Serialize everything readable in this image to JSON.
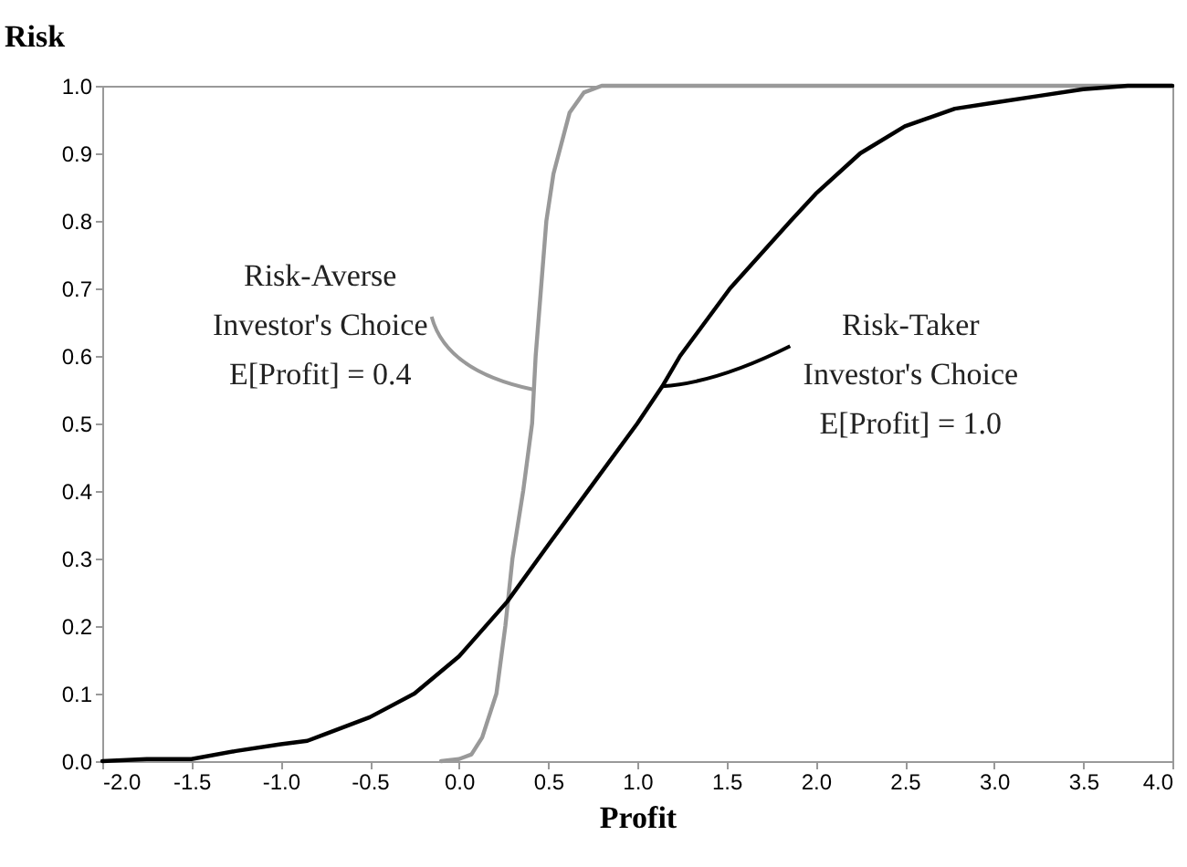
{
  "chart_data": {
    "type": "line",
    "xlabel": "Profit",
    "ylabel": "Risk",
    "xlim": [
      -2.0,
      4.0
    ],
    "ylim": [
      0.0,
      1.0
    ],
    "xticks": [
      {
        "value": -2.0,
        "label": "-2.0"
      },
      {
        "value": -1.5,
        "label": "-1.5"
      },
      {
        "value": -1.0,
        "label": "-1.0"
      },
      {
        "value": -0.5,
        "label": "-0.5"
      },
      {
        "value": 0.0,
        "label": "0.0"
      },
      {
        "value": 0.5,
        "label": "0.5"
      },
      {
        "value": 1.0,
        "label": "1.0"
      },
      {
        "value": 1.5,
        "label": "1.5"
      },
      {
        "value": 2.0,
        "label": "2.0"
      },
      {
        "value": 2.5,
        "label": "2.5"
      },
      {
        "value": 3.0,
        "label": "3.0"
      },
      {
        "value": 3.5,
        "label": "3.5"
      },
      {
        "value": 4.0,
        "label": "4.0"
      }
    ],
    "yticks": [
      {
        "value": 0.0,
        "label": "0.0"
      },
      {
        "value": 0.1,
        "label": "0.1"
      },
      {
        "value": 0.2,
        "label": "0.2"
      },
      {
        "value": 0.3,
        "label": "0.3"
      },
      {
        "value": 0.4,
        "label": "0.4"
      },
      {
        "value": 0.5,
        "label": "0.5"
      },
      {
        "value": 0.6,
        "label": "0.6"
      },
      {
        "value": 0.7,
        "label": "0.7"
      },
      {
        "value": 0.8,
        "label": "0.8"
      },
      {
        "value": 0.9,
        "label": "0.9"
      },
      {
        "value": 1.0,
        "label": "1.0"
      }
    ],
    "grid": false,
    "marker": "none",
    "line_style": "solid",
    "series": [
      {
        "color": "#999999",
        "x": [
          -0.1,
          0.0,
          0.07,
          0.13,
          0.21,
          0.26,
          0.3,
          0.36,
          0.41,
          0.43,
          0.46,
          0.49,
          0.53,
          0.56,
          0.62,
          0.7,
          0.8,
          4.0
        ],
        "values": [
          0.0,
          0.003,
          0.01,
          0.035,
          0.1,
          0.2,
          0.3,
          0.4,
          0.5,
          0.6,
          0.7,
          0.8,
          0.87,
          0.9,
          0.96,
          0.99,
          1.0,
          1.0
        ]
      },
      {
        "color": "#000000",
        "x": [
          -2.0,
          -1.75,
          -1.5,
          -1.25,
          -1.0,
          -0.85,
          -0.75,
          -0.5,
          -0.25,
          0.0,
          0.27,
          0.5,
          0.75,
          1.0,
          1.14,
          1.24,
          1.52,
          1.86,
          2.0,
          2.25,
          2.5,
          2.78,
          3.0,
          3.25,
          3.5,
          3.75,
          4.0
        ],
        "values": [
          0.0,
          0.003,
          0.003,
          0.015,
          0.025,
          0.03,
          0.04,
          0.065,
          0.1,
          0.155,
          0.236,
          0.32,
          0.41,
          0.5,
          0.555,
          0.6,
          0.7,
          0.8,
          0.84,
          0.9,
          0.94,
          0.966,
          0.975,
          0.985,
          0.995,
          1.0,
          1.0
        ]
      }
    ],
    "annotations": [
      {
        "text": "Risk-Averse\nInvestor's Choice\nE[Profit] = 0.4",
        "x": 0.42,
        "y": 0.55
      },
      {
        "text": "Risk-Taker\nInvestor's Choice\nE[Profit] = 1.0",
        "x": 1.14,
        "y": 0.555
      }
    ]
  }
}
